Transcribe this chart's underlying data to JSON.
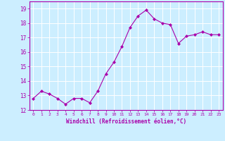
{
  "x": [
    0,
    1,
    2,
    3,
    4,
    5,
    6,
    7,
    8,
    9,
    10,
    11,
    12,
    13,
    14,
    15,
    16,
    17,
    18,
    19,
    20,
    21,
    22,
    23
  ],
  "y": [
    12.8,
    13.3,
    13.1,
    12.8,
    12.4,
    12.8,
    12.8,
    12.5,
    13.3,
    14.5,
    15.3,
    16.4,
    17.7,
    18.5,
    18.9,
    18.3,
    18.0,
    17.9,
    16.6,
    17.1,
    17.2,
    17.4,
    17.2,
    17.2
  ],
  "line_color": "#aa00aa",
  "marker": "D",
  "marker_size": 2.0,
  "bg_color": "#cceeff",
  "grid_color": "#ffffff",
  "xlabel": "Windchill (Refroidissement éolien,°C)",
  "ylim": [
    12,
    19.5
  ],
  "xlim": [
    -0.5,
    23.5
  ],
  "yticks": [
    12,
    13,
    14,
    15,
    16,
    17,
    18,
    19
  ],
  "xticks": [
    0,
    1,
    2,
    3,
    4,
    5,
    6,
    7,
    8,
    9,
    10,
    11,
    12,
    13,
    14,
    15,
    16,
    17,
    18,
    19,
    20,
    21,
    22,
    23
  ],
  "label_color": "#aa00aa",
  "tick_color": "#aa00aa",
  "spine_color": "#aa00aa",
  "xlabel_fontsize": 5.5,
  "xtick_fontsize": 4.5,
  "ytick_fontsize": 5.5,
  "linewidth": 0.8
}
